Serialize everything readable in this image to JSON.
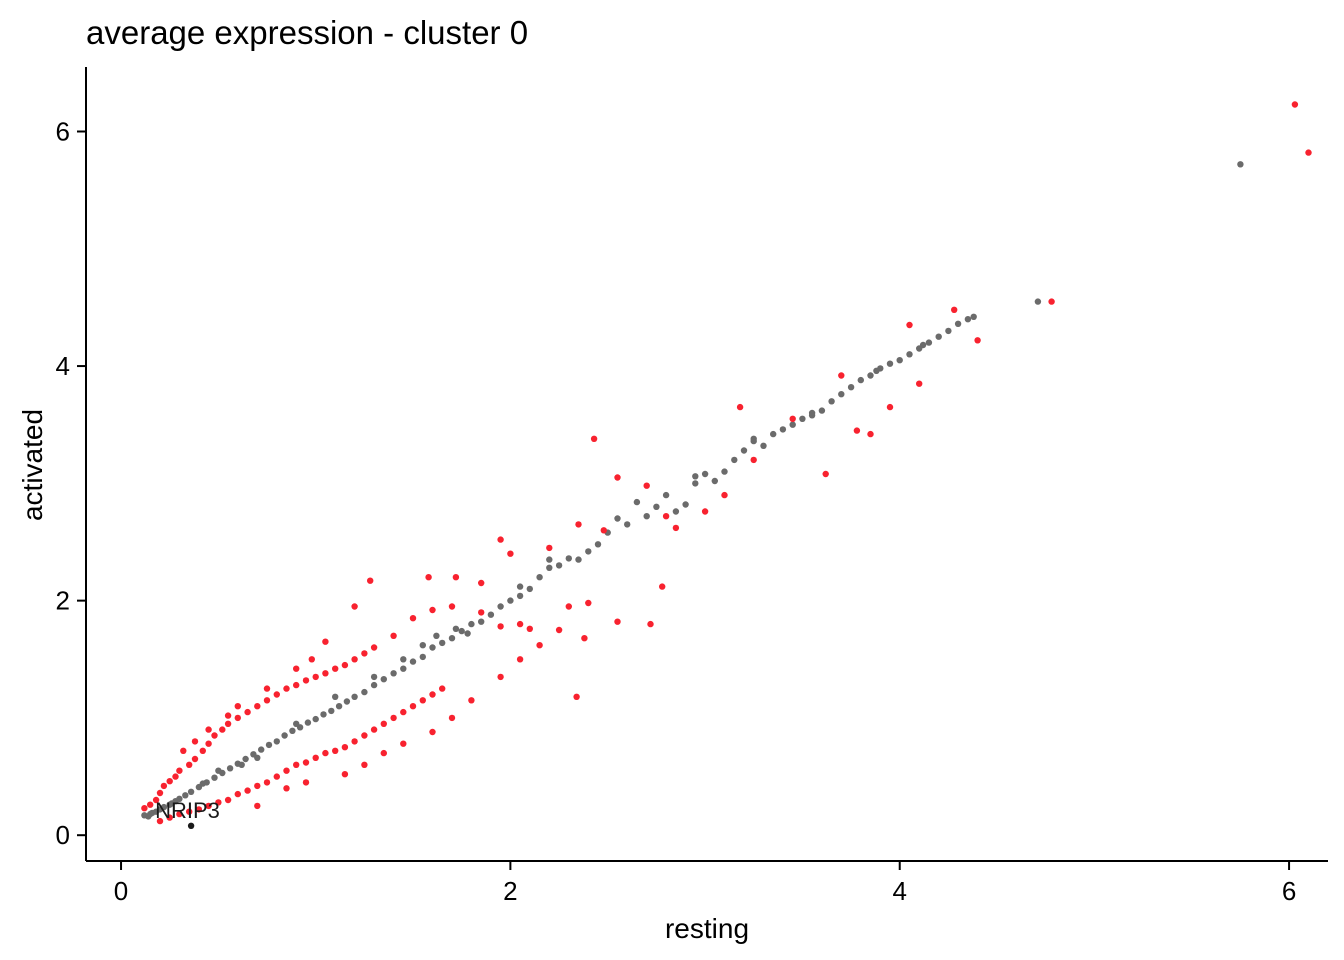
{
  "chart_data": {
    "type": "scatter",
    "title": "average expression - cluster 0",
    "xlabel": "resting",
    "ylabel": "activated",
    "xlim": [
      -0.18,
      6.2
    ],
    "ylim": [
      -0.22,
      6.55
    ],
    "xticks": [
      "0",
      "2",
      "4",
      "6"
    ],
    "yticks": [
      "0",
      "2",
      "4",
      "6"
    ],
    "grid": false,
    "legend": "none",
    "colors": {
      "red": "#f8222f",
      "grey": "#6b6b6b",
      "black": "#1a1a1a"
    },
    "annotations": [
      {
        "label": "NRIP3",
        "x": 0.36,
        "y": 0.08
      }
    ],
    "series": [
      {
        "color": "grey",
        "points": [
          [
            0.12,
            0.17
          ],
          [
            0.14,
            0.16
          ],
          [
            0.15,
            0.18
          ],
          [
            0.16,
            0.19
          ],
          [
            0.18,
            0.2
          ],
          [
            0.2,
            0.22
          ],
          [
            0.22,
            0.24
          ],
          [
            0.25,
            0.26
          ],
          [
            0.28,
            0.29
          ],
          [
            0.3,
            0.31
          ],
          [
            0.33,
            0.34
          ],
          [
            0.36,
            0.37
          ],
          [
            0.4,
            0.41
          ],
          [
            0.44,
            0.45
          ],
          [
            0.48,
            0.49
          ],
          [
            0.52,
            0.53
          ],
          [
            0.56,
            0.57
          ],
          [
            0.6,
            0.61
          ],
          [
            0.64,
            0.65
          ],
          [
            0.68,
            0.69
          ],
          [
            0.72,
            0.73
          ],
          [
            0.76,
            0.77
          ],
          [
            0.8,
            0.8
          ],
          [
            0.84,
            0.85
          ],
          [
            0.88,
            0.89
          ],
          [
            0.92,
            0.92
          ],
          [
            0.96,
            0.96
          ],
          [
            1.0,
            0.99
          ],
          [
            1.04,
            1.03
          ],
          [
            1.08,
            1.06
          ],
          [
            1.12,
            1.1
          ],
          [
            1.16,
            1.14
          ],
          [
            1.2,
            1.18
          ],
          [
            1.25,
            1.22
          ],
          [
            1.3,
            1.28
          ],
          [
            1.35,
            1.33
          ],
          [
            1.4,
            1.38
          ],
          [
            1.45,
            1.42
          ],
          [
            1.5,
            1.48
          ],
          [
            1.55,
            1.52
          ],
          [
            1.6,
            1.6
          ],
          [
            1.62,
            1.7
          ],
          [
            1.65,
            1.64
          ],
          [
            1.7,
            1.68
          ],
          [
            1.72,
            1.76
          ],
          [
            1.78,
            1.72
          ],
          [
            1.8,
            1.8
          ],
          [
            1.85,
            1.82
          ],
          [
            1.9,
            1.88
          ],
          [
            1.95,
            1.95
          ],
          [
            2.0,
            2.0
          ],
          [
            2.05,
            2.04
          ],
          [
            2.1,
            2.1
          ],
          [
            2.15,
            2.2
          ],
          [
            2.2,
            2.28
          ],
          [
            2.25,
            2.3
          ],
          [
            2.3,
            2.36
          ],
          [
            2.35,
            2.35
          ],
          [
            2.4,
            2.42
          ],
          [
            2.5,
            2.58
          ],
          [
            2.6,
            2.65
          ],
          [
            2.7,
            2.72
          ],
          [
            2.75,
            2.8
          ],
          [
            2.8,
            2.9
          ],
          [
            2.85,
            2.76
          ],
          [
            2.9,
            2.82
          ],
          [
            2.95,
            3.0
          ],
          [
            3.0,
            3.08
          ],
          [
            3.05,
            3.02
          ],
          [
            3.1,
            3.1
          ],
          [
            3.15,
            3.2
          ],
          [
            3.2,
            3.28
          ],
          [
            3.25,
            3.36
          ],
          [
            3.3,
            3.32
          ],
          [
            3.35,
            3.42
          ],
          [
            3.4,
            3.46
          ],
          [
            3.45,
            3.5
          ],
          [
            3.5,
            3.55
          ],
          [
            3.55,
            3.58
          ],
          [
            3.6,
            3.62
          ],
          [
            3.65,
            3.7
          ],
          [
            3.7,
            3.76
          ],
          [
            3.75,
            3.82
          ],
          [
            3.8,
            3.88
          ],
          [
            3.85,
            3.92
          ],
          [
            3.9,
            3.98
          ],
          [
            3.95,
            4.02
          ],
          [
            4.0,
            4.05
          ],
          [
            4.05,
            4.1
          ],
          [
            4.1,
            4.15
          ],
          [
            4.15,
            4.2
          ],
          [
            4.2,
            4.25
          ],
          [
            4.25,
            4.3
          ],
          [
            4.3,
            4.36
          ],
          [
            4.35,
            4.4
          ],
          [
            4.38,
            4.42
          ],
          [
            4.71,
            4.55
          ],
          [
            5.75,
            5.72
          ],
          [
            0.5,
            0.55
          ],
          [
            0.7,
            0.66
          ],
          [
            1.1,
            1.18
          ],
          [
            1.3,
            1.35
          ],
          [
            1.45,
            1.5
          ],
          [
            1.75,
            1.74
          ],
          [
            2.05,
            2.12
          ],
          [
            2.2,
            2.35
          ],
          [
            2.45,
            2.48
          ],
          [
            2.55,
            2.7
          ],
          [
            2.65,
            2.84
          ],
          [
            2.95,
            3.06
          ],
          [
            3.25,
            3.38
          ],
          [
            3.55,
            3.6
          ],
          [
            3.88,
            3.96
          ],
          [
            4.12,
            4.18
          ],
          [
            1.55,
            1.62
          ],
          [
            0.9,
            0.95
          ],
          [
            0.62,
            0.6
          ],
          [
            0.42,
            0.44
          ],
          [
            0.26,
            0.27
          ]
        ]
      },
      {
        "color": "red",
        "points": [
          [
            0.12,
            0.23
          ],
          [
            0.15,
            0.26
          ],
          [
            0.18,
            0.3
          ],
          [
            0.2,
            0.36
          ],
          [
            0.22,
            0.42
          ],
          [
            0.25,
            0.46
          ],
          [
            0.28,
            0.5
          ],
          [
            0.3,
            0.55
          ],
          [
            0.35,
            0.6
          ],
          [
            0.38,
            0.65
          ],
          [
            0.42,
            0.72
          ],
          [
            0.45,
            0.78
          ],
          [
            0.48,
            0.85
          ],
          [
            0.52,
            0.9
          ],
          [
            0.55,
            0.95
          ],
          [
            0.6,
            1.0
          ],
          [
            0.65,
            1.05
          ],
          [
            0.7,
            1.1
          ],
          [
            0.75,
            1.15
          ],
          [
            0.8,
            1.2
          ],
          [
            0.85,
            1.25
          ],
          [
            0.9,
            1.28
          ],
          [
            0.95,
            1.32
          ],
          [
            1.0,
            1.35
          ],
          [
            1.05,
            1.38
          ],
          [
            1.1,
            1.42
          ],
          [
            1.15,
            1.45
          ],
          [
            1.2,
            1.5
          ],
          [
            1.25,
            1.55
          ],
          [
            1.3,
            1.6
          ],
          [
            0.2,
            0.12
          ],
          [
            0.25,
            0.15
          ],
          [
            0.3,
            0.18
          ],
          [
            0.35,
            0.2
          ],
          [
            0.4,
            0.22
          ],
          [
            0.45,
            0.25
          ],
          [
            0.5,
            0.28
          ],
          [
            0.55,
            0.3
          ],
          [
            0.6,
            0.35
          ],
          [
            0.65,
            0.38
          ],
          [
            0.7,
            0.42
          ],
          [
            0.75,
            0.45
          ],
          [
            0.8,
            0.5
          ],
          [
            0.85,
            0.55
          ],
          [
            0.9,
            0.6
          ],
          [
            0.95,
            0.62
          ],
          [
            1.0,
            0.66
          ],
          [
            1.05,
            0.7
          ],
          [
            1.1,
            0.72
          ],
          [
            1.15,
            0.75
          ],
          [
            1.2,
            0.8
          ],
          [
            1.25,
            0.85
          ],
          [
            1.3,
            0.9
          ],
          [
            1.35,
            0.95
          ],
          [
            1.4,
            1.0
          ],
          [
            1.45,
            1.05
          ],
          [
            1.5,
            1.1
          ],
          [
            1.55,
            1.15
          ],
          [
            1.6,
            1.2
          ],
          [
            1.65,
            1.25
          ],
          [
            1.28,
            2.17
          ],
          [
            1.58,
            2.2
          ],
          [
            1.72,
            2.2
          ],
          [
            1.6,
            1.92
          ],
          [
            1.7,
            1.95
          ],
          [
            1.85,
            1.9
          ],
          [
            1.95,
            1.78
          ],
          [
            2.05,
            1.8
          ],
          [
            2.1,
            1.76
          ],
          [
            2.2,
            2.45
          ],
          [
            2.3,
            1.95
          ],
          [
            2.35,
            2.65
          ],
          [
            2.38,
            1.68
          ],
          [
            2.4,
            1.98
          ],
          [
            2.43,
            3.38
          ],
          [
            2.48,
            2.6
          ],
          [
            2.55,
            3.05
          ],
          [
            2.55,
            1.82
          ],
          [
            2.7,
            2.98
          ],
          [
            2.72,
            1.8
          ],
          [
            2.78,
            2.12
          ],
          [
            2.8,
            2.72
          ],
          [
            2.85,
            2.62
          ],
          [
            3.0,
            2.76
          ],
          [
            3.1,
            2.9
          ],
          [
            3.18,
            3.65
          ],
          [
            3.25,
            3.2
          ],
          [
            3.45,
            3.55
          ],
          [
            3.62,
            3.08
          ],
          [
            3.7,
            3.92
          ],
          [
            3.78,
            3.45
          ],
          [
            3.85,
            3.42
          ],
          [
            3.95,
            3.65
          ],
          [
            4.05,
            4.35
          ],
          [
            4.1,
            3.85
          ],
          [
            4.28,
            4.48
          ],
          [
            4.4,
            4.22
          ],
          [
            4.78,
            4.55
          ],
          [
            6.03,
            6.23
          ],
          [
            6.1,
            5.82
          ],
          [
            2.34,
            1.18
          ],
          [
            1.95,
            2.52
          ],
          [
            2.0,
            2.4
          ],
          [
            1.85,
            2.15
          ],
          [
            1.4,
            1.7
          ],
          [
            1.5,
            1.85
          ],
          [
            1.2,
            1.95
          ],
          [
            1.05,
            1.65
          ],
          [
            0.98,
            1.5
          ],
          [
            0.9,
            1.42
          ],
          [
            0.75,
            1.25
          ],
          [
            0.6,
            1.1
          ],
          [
            0.55,
            1.02
          ],
          [
            0.45,
            0.9
          ],
          [
            0.38,
            0.8
          ],
          [
            0.32,
            0.72
          ],
          [
            1.15,
            0.52
          ],
          [
            1.25,
            0.6
          ],
          [
            1.35,
            0.7
          ],
          [
            1.45,
            0.78
          ],
          [
            1.6,
            0.88
          ],
          [
            1.7,
            1.0
          ],
          [
            1.8,
            1.15
          ],
          [
            1.95,
            1.35
          ],
          [
            2.05,
            1.5
          ],
          [
            2.15,
            1.62
          ],
          [
            2.25,
            1.75
          ],
          [
            0.85,
            0.4
          ],
          [
            0.95,
            0.45
          ],
          [
            0.7,
            0.25
          ]
        ]
      }
    ]
  }
}
